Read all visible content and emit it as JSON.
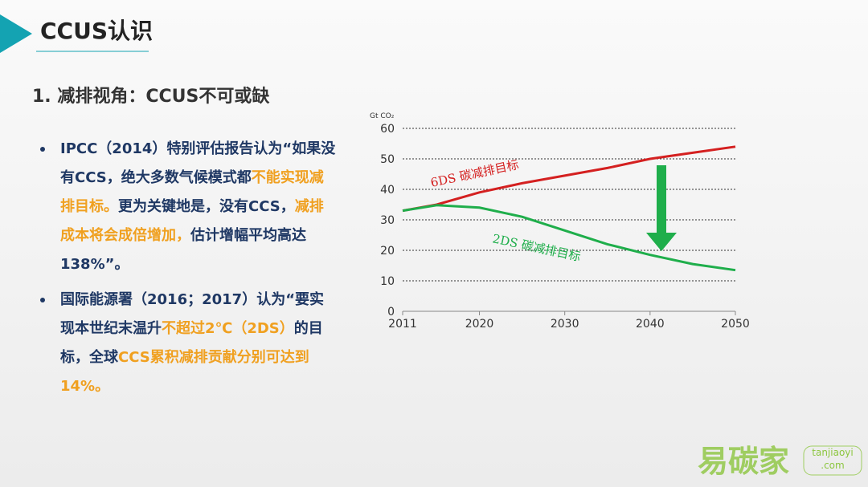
{
  "header": {
    "title": "CCUS认识"
  },
  "section": {
    "title": "1. 减排视角：CCUS不可或缺"
  },
  "bullets": [
    {
      "segments": [
        {
          "text": "IPCC（2014）特别评估报告认为“如果没有CCS，绝大多数气候模式都",
          "highlight": false
        },
        {
          "text": "不能实现减排目标。",
          "highlight": true
        },
        {
          "text": "更为关键地是，没有CCS，",
          "highlight": false
        },
        {
          "text": "减排成本将会成倍增加，",
          "highlight": true
        },
        {
          "text": "估计增幅平均高达138%”。",
          "highlight": false
        }
      ]
    },
    {
      "segments": [
        {
          "text": "国际能源署（2016；2017）认为“要实现本世纪末温升",
          "highlight": false
        },
        {
          "text": "不超过2℃（2DS）",
          "highlight": true
        },
        {
          "text": "的目标，全球",
          "highlight": false
        },
        {
          "text": "CCS累积减排贡献分别可达到14%。",
          "highlight": true
        }
      ]
    }
  ],
  "chart_data": {
    "type": "line",
    "y_label": "Gt CO₂",
    "x": [
      2011,
      2015,
      2020,
      2025,
      2030,
      2035,
      2040,
      2045,
      2050
    ],
    "series": [
      {
        "name": "6DS 碳减排目标",
        "color": "#d42020",
        "values": [
          33,
          35,
          39,
          42,
          44.5,
          47,
          50,
          52,
          54
        ]
      },
      {
        "name": "2DS 碳减排目标",
        "color": "#1fae4b",
        "values": [
          33,
          34.8,
          34,
          31,
          26.5,
          22,
          18.5,
          15.5,
          13.5
        ]
      }
    ],
    "xlim": [
      2011,
      2050
    ],
    "xticks": [
      2011,
      2020,
      2030,
      2040,
      2050
    ],
    "ylim": [
      0,
      60
    ],
    "yticks": [
      0,
      10,
      20,
      30,
      40,
      50,
      60
    ],
    "grid": true
  },
  "watermark": {
    "brand": "易碳家",
    "domain": "tanjiaoyi",
    "tld": ".com"
  }
}
